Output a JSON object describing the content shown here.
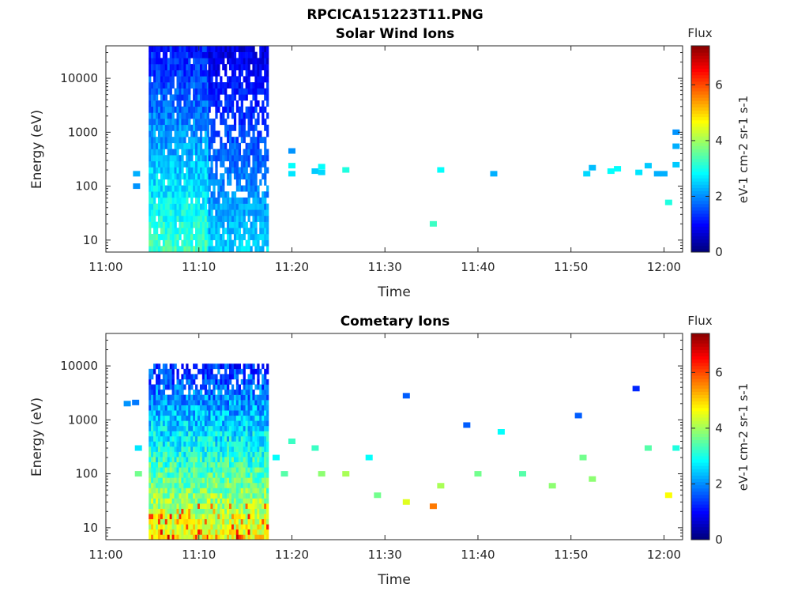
{
  "figure_title": "RPCICA151223T11.PNG",
  "chart_data": [
    {
      "type": "heatmap",
      "title": "Solar Wind Ions",
      "xlabel": "Time",
      "ylabel": "Energy (eV)",
      "x_ticks": [
        "11:00",
        "11:10",
        "11:20",
        "11:30",
        "11:40",
        "11:50",
        "12:00"
      ],
      "xlim_minutes": [
        0,
        62
      ],
      "y_scale": "log",
      "ylim": [
        6,
        40000
      ],
      "y_ticks": [
        10,
        100,
        1000,
        10000
      ],
      "y_tick_labels": [
        "10",
        "100",
        "1000",
        "10000"
      ],
      "colorbar": {
        "title": "Flux",
        "label": "eV-1 cm-2 sr-1 s-1",
        "range": [
          0,
          7.4
        ],
        "ticks": [
          "0",
          "2",
          "4",
          "6"
        ]
      },
      "dense_blocks": [
        {
          "start_min": 4.6,
          "end_min": 11.0,
          "emin": 6,
          "emax": 40000,
          "mode": "dense"
        },
        {
          "start_min": 11.0,
          "end_min": 17.3,
          "emin": 6,
          "emax": 40000,
          "mode": "patchy"
        }
      ],
      "points": [
        {
          "t": 3.3,
          "e": 170,
          "f": 2.2
        },
        {
          "t": 3.3,
          "e": 100,
          "f": 2.0
        },
        {
          "t": 20.0,
          "e": 450,
          "f": 2.0
        },
        {
          "t": 20.0,
          "e": 240,
          "f": 2.8
        },
        {
          "t": 20.0,
          "e": 170,
          "f": 2.6
        },
        {
          "t": 22.5,
          "e": 190,
          "f": 2.4
        },
        {
          "t": 23.2,
          "e": 230,
          "f": 2.8
        },
        {
          "t": 23.2,
          "e": 180,
          "f": 2.5
        },
        {
          "t": 25.8,
          "e": 200,
          "f": 3.0
        },
        {
          "t": 35.2,
          "e": 20,
          "f": 3.2
        },
        {
          "t": 36.0,
          "e": 200,
          "f": 2.8
        },
        {
          "t": 41.7,
          "e": 170,
          "f": 2.2
        },
        {
          "t": 51.7,
          "e": 170,
          "f": 2.5
        },
        {
          "t": 52.3,
          "e": 220,
          "f": 2.3
        },
        {
          "t": 54.3,
          "e": 190,
          "f": 2.8
        },
        {
          "t": 55.0,
          "e": 210,
          "f": 2.8
        },
        {
          "t": 57.3,
          "e": 180,
          "f": 2.6
        },
        {
          "t": 58.3,
          "e": 240,
          "f": 2.4
        },
        {
          "t": 59.3,
          "e": 170,
          "f": 2.2
        },
        {
          "t": 60.0,
          "e": 170,
          "f": 2.2
        },
        {
          "t": 60.5,
          "e": 50,
          "f": 3.0
        },
        {
          "t": 61.3,
          "e": 1000,
          "f": 2.0
        },
        {
          "t": 61.3,
          "e": 550,
          "f": 2.2
        },
        {
          "t": 61.3,
          "e": 250,
          "f": 2.4
        }
      ]
    },
    {
      "type": "heatmap",
      "title": "Cometary Ions",
      "xlabel": "Time",
      "ylabel": "Energy (eV)",
      "x_ticks": [
        "11:00",
        "11:10",
        "11:20",
        "11:30",
        "11:40",
        "11:50",
        "12:00"
      ],
      "xlim_minutes": [
        0,
        62
      ],
      "y_scale": "log",
      "ylim": [
        6,
        40000
      ],
      "y_ticks": [
        10,
        100,
        1000,
        10000
      ],
      "y_tick_labels": [
        "10",
        "100",
        "1000",
        "10000"
      ],
      "colorbar": {
        "title": "Flux",
        "label": "eV-1 cm-2 sr-1 s-1",
        "range": [
          0,
          7.4
        ],
        "ticks": [
          "0",
          "2",
          "4",
          "6"
        ]
      },
      "dense_blocks": [
        {
          "start_min": 4.6,
          "end_min": 11.0,
          "emin": 6,
          "emax": 11000,
          "mode": "cometary"
        },
        {
          "start_min": 11.0,
          "end_min": 17.3,
          "emin": 6,
          "emax": 11000,
          "mode": "cometary"
        }
      ],
      "points": [
        {
          "t": 2.3,
          "e": 2000,
          "f": 2.0
        },
        {
          "t": 3.2,
          "e": 2100,
          "f": 1.8
        },
        {
          "t": 3.5,
          "e": 300,
          "f": 2.6
        },
        {
          "t": 3.5,
          "e": 100,
          "f": 3.6
        },
        {
          "t": 18.3,
          "e": 200,
          "f": 2.8
        },
        {
          "t": 19.2,
          "e": 100,
          "f": 3.4
        },
        {
          "t": 20.0,
          "e": 400,
          "f": 3.2
        },
        {
          "t": 22.5,
          "e": 300,
          "f": 3.2
        },
        {
          "t": 23.2,
          "e": 100,
          "f": 3.8
        },
        {
          "t": 25.8,
          "e": 100,
          "f": 4.0
        },
        {
          "t": 28.3,
          "e": 200,
          "f": 2.8
        },
        {
          "t": 29.2,
          "e": 40,
          "f": 3.6
        },
        {
          "t": 32.3,
          "e": 30,
          "f": 4.4
        },
        {
          "t": 32.3,
          "e": 2800,
          "f": 1.6
        },
        {
          "t": 35.2,
          "e": 25,
          "f": 5.6
        },
        {
          "t": 36.0,
          "e": 60,
          "f": 4.0
        },
        {
          "t": 38.8,
          "e": 800,
          "f": 1.6
        },
        {
          "t": 40.0,
          "e": 100,
          "f": 3.6
        },
        {
          "t": 42.5,
          "e": 600,
          "f": 2.8
        },
        {
          "t": 44.8,
          "e": 100,
          "f": 3.4
        },
        {
          "t": 48.0,
          "e": 60,
          "f": 3.8
        },
        {
          "t": 50.8,
          "e": 1200,
          "f": 1.6
        },
        {
          "t": 51.3,
          "e": 200,
          "f": 3.6
        },
        {
          "t": 52.3,
          "e": 80,
          "f": 3.8
        },
        {
          "t": 57.0,
          "e": 3800,
          "f": 1.2
        },
        {
          "t": 58.3,
          "e": 300,
          "f": 3.4
        },
        {
          "t": 60.5,
          "e": 40,
          "f": 4.6
        },
        {
          "t": 61.3,
          "e": 300,
          "f": 3.0
        }
      ]
    }
  ]
}
